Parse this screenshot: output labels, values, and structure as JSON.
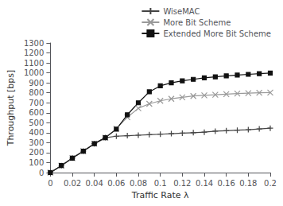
{
  "chart_data": {
    "type": "line",
    "x": [
      0,
      0.01,
      0.02,
      0.03,
      0.04,
      0.05,
      0.06,
      0.07,
      0.08,
      0.09,
      0.1,
      0.11,
      0.12,
      0.13,
      0.14,
      0.15,
      0.16,
      0.17,
      0.18,
      0.19,
      0.2
    ],
    "series": [
      {
        "name": "WiseMAC",
        "color": "#444444",
        "marker": "plus",
        "values": [
          0,
          70,
          145,
          215,
          290,
          350,
          365,
          370,
          375,
          380,
          385,
          390,
          395,
          400,
          405,
          415,
          420,
          425,
          430,
          438,
          445
        ]
      },
      {
        "name": "More Bit Scheme",
        "color": "#999999",
        "marker": "x",
        "values": [
          0,
          70,
          145,
          215,
          290,
          350,
          440,
          555,
          645,
          690,
          720,
          740,
          755,
          768,
          775,
          780,
          787,
          792,
          796,
          800,
          803
        ]
      },
      {
        "name": "Extended More Bit Scheme",
        "color": "#111111",
        "marker": "square",
        "values": [
          0,
          70,
          145,
          215,
          290,
          350,
          435,
          580,
          700,
          810,
          870,
          900,
          920,
          935,
          950,
          960,
          970,
          978,
          985,
          992,
          998
        ]
      }
    ],
    "xlabel": "Traffic Rate λ",
    "ylabel": "Throughput [bps]",
    "xlim": [
      0,
      0.2
    ],
    "ylim": [
      0,
      1300
    ],
    "xticks": [
      0,
      0.02,
      0.04,
      0.06,
      0.08,
      0.1,
      0.12,
      0.14,
      0.16,
      0.18,
      0.2
    ],
    "yticks": [
      0,
      100,
      200,
      300,
      400,
      500,
      600,
      700,
      800,
      900,
      1000,
      1100,
      1200,
      1300
    ],
    "grid": false,
    "legend": "upper right"
  }
}
